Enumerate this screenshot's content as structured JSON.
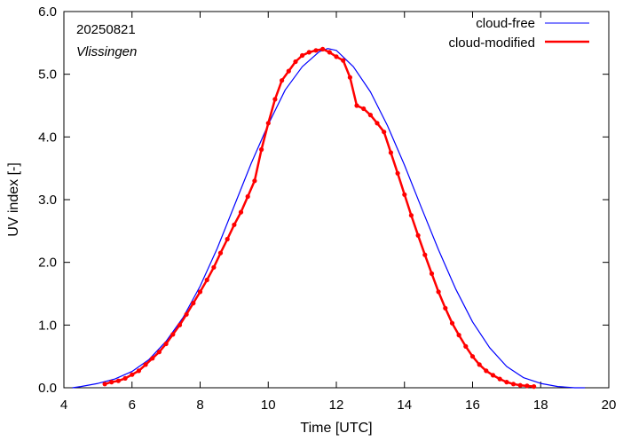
{
  "chart_data": {
    "type": "line",
    "xlabel": "Time  [UTC]",
    "ylabel": "UV index  [-]",
    "xlim": [
      4,
      20
    ],
    "ylim": [
      0,
      6
    ],
    "x_ticks": [
      "4",
      "6",
      "8",
      "10",
      "12",
      "14",
      "16",
      "18",
      "20"
    ],
    "y_ticks": [
      "0.0",
      "1.0",
      "2.0",
      "3.0",
      "4.0",
      "5.0",
      "6.0"
    ],
    "annotations": {
      "date": "20250821",
      "location": "Vlissingen"
    },
    "legend_position": "top-right",
    "grid": false,
    "series": [
      {
        "name": "cloud-free",
        "color": "#0000ff",
        "marker": "none",
        "x": [
          4.25,
          4.5,
          5.0,
          5.5,
          6.0,
          6.5,
          7.0,
          7.5,
          8.0,
          8.5,
          9.0,
          9.5,
          10.0,
          10.5,
          11.0,
          11.5,
          11.75,
          12.0,
          12.5,
          13.0,
          13.5,
          14.0,
          14.5,
          15.0,
          15.5,
          16.0,
          16.5,
          17.0,
          17.5,
          18.0,
          18.5,
          19.0,
          19.3
        ],
        "y": [
          0.0,
          0.02,
          0.07,
          0.14,
          0.26,
          0.45,
          0.74,
          1.12,
          1.62,
          2.22,
          2.9,
          3.58,
          4.2,
          4.75,
          5.12,
          5.36,
          5.41,
          5.38,
          5.12,
          4.72,
          4.18,
          3.55,
          2.87,
          2.2,
          1.58,
          1.05,
          0.64,
          0.34,
          0.16,
          0.07,
          0.02,
          0.0,
          0.0
        ]
      },
      {
        "name": "cloud-modified",
        "color": "#ff0000",
        "marker": "dot",
        "x": [
          5.2,
          5.4,
          5.6,
          5.8,
          6.0,
          6.2,
          6.4,
          6.6,
          6.8,
          7.0,
          7.2,
          7.4,
          7.6,
          7.8,
          8.0,
          8.2,
          8.4,
          8.6,
          8.8,
          9.0,
          9.2,
          9.4,
          9.6,
          9.8,
          10.0,
          10.2,
          10.4,
          10.6,
          10.8,
          11.0,
          11.2,
          11.4,
          11.6,
          11.8,
          12.0,
          12.2,
          12.4,
          12.6,
          12.8,
          13.0,
          13.2,
          13.4,
          13.6,
          13.8,
          14.0,
          14.2,
          14.4,
          14.6,
          14.8,
          15.0,
          15.2,
          15.4,
          15.6,
          15.8,
          16.0,
          16.2,
          16.4,
          16.6,
          16.8,
          17.0,
          17.2,
          17.4,
          17.6,
          17.8
        ],
        "y": [
          0.06,
          0.09,
          0.11,
          0.15,
          0.21,
          0.27,
          0.37,
          0.47,
          0.57,
          0.7,
          0.85,
          1.0,
          1.17,
          1.35,
          1.53,
          1.72,
          1.92,
          2.15,
          2.37,
          2.6,
          2.8,
          3.05,
          3.3,
          3.8,
          4.22,
          4.6,
          4.9,
          5.05,
          5.2,
          5.3,
          5.35,
          5.38,
          5.4,
          5.35,
          5.28,
          5.22,
          4.95,
          4.5,
          4.45,
          4.35,
          4.22,
          4.08,
          3.75,
          3.42,
          3.08,
          2.75,
          2.43,
          2.12,
          1.82,
          1.53,
          1.27,
          1.03,
          0.84,
          0.66,
          0.5,
          0.37,
          0.27,
          0.2,
          0.14,
          0.09,
          0.06,
          0.04,
          0.03,
          0.02
        ]
      }
    ]
  }
}
